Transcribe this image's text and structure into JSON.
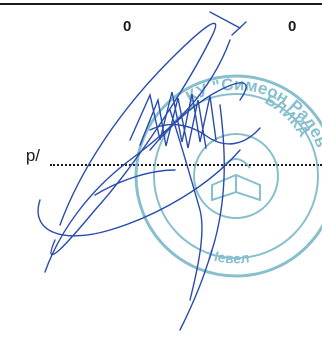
{
  "document": {
    "num_left": "0",
    "num_right": "0",
    "field_label": "p/",
    "seal_text_top": "КУ \"Симеон Радев\"",
    "seal_text_side": "БЛИКА",
    "seal_text_bottom": "Невел"
  },
  "colors": {
    "ink": "#1a1a1a",
    "signature": "#2a4cae",
    "seal": "#6bb0c4"
  }
}
